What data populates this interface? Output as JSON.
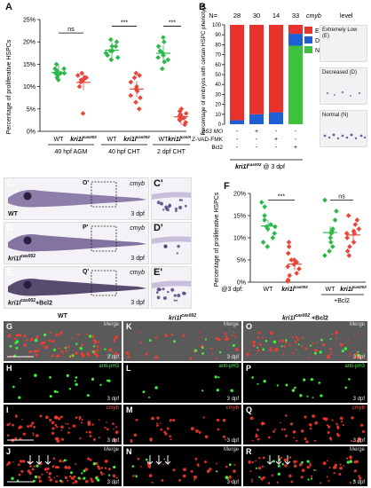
{
  "panel_labels": {
    "A": "A",
    "B": "B",
    "C": "C",
    "D": "D",
    "E": "E",
    "F": "F",
    "G": "G",
    "H": "H",
    "I": "I",
    "J": "J",
    "K": "K",
    "L": "L",
    "M": "M",
    "N": "N",
    "O": "O",
    "P": "P",
    "Q": "Q",
    "R": "R"
  },
  "panelA": {
    "ylabel": "Percentage of proliferative HSPCs",
    "yticks": [
      "0%",
      "5%",
      "10%",
      "15%",
      "20%",
      "25%"
    ],
    "sig": [
      "ns",
      "***",
      "***"
    ],
    "xlabels": [
      "WT",
      "kri1l",
      "WT",
      "kri1l",
      "WT",
      "kri1l"
    ],
    "sup": "cas002",
    "groups": [
      "40 hpf  AGM",
      "40 hpf  CHT",
      "2 dpf  CHT"
    ]
  },
  "panelB": {
    "n_labels": [
      "N=",
      "28",
      "30",
      "14",
      "33"
    ],
    "ylabel": "Percentage of embryos with certain HSPC phenotype",
    "yticks": [
      "0",
      "10",
      "20",
      "30",
      "40",
      "50",
      "60",
      "70",
      "80",
      "90",
      "100"
    ],
    "legend_title": "cmyb",
    "legend_title2": "level",
    "legend": [
      "E",
      "D",
      "N"
    ],
    "rows": [
      {
        "label": "p53 MO",
        "vals": [
          "-",
          "+",
          "-",
          "-"
        ]
      },
      {
        "label": "Z-VAD-FMK",
        "vals": [
          "-",
          "-",
          "+",
          "-"
        ]
      },
      {
        "label": "Bcl2",
        "vals": [
          "-",
          "-",
          "-",
          "+"
        ]
      }
    ],
    "bottom_label": "kri1l",
    "bottom_sup": "cas002",
    "bottom_suffix": "@ 3 dpf",
    "insets": [
      "Extremely Low (E)",
      "Decreased (D)",
      "Normal (N)"
    ]
  },
  "panelCDE": {
    "rows": [
      {
        "letter": "C",
        "prime": "C'",
        "box": "O'",
        "genotype": "WT",
        "gene": "cmyb",
        "age": "3 dpf"
      },
      {
        "letter": "D",
        "prime": "D'",
        "box": "P'",
        "genotype": "kri1l",
        "gene": "cmyb",
        "age": "3 dpf"
      },
      {
        "letter": "E",
        "prime": "E'",
        "box": "Q'",
        "genotype": "kri1l",
        "gene": "cmyb",
        "age": "3 dpf",
        "extra": "+Bcl2"
      }
    ],
    "sup": "cas002"
  },
  "panelF": {
    "ylabel": "Percentage of proliferative HSPCs",
    "yticks": [
      "0%",
      "5%",
      "10%",
      "15%",
      "20%"
    ],
    "sig": [
      "***",
      "ns"
    ],
    "prefix": "@3 dpf:",
    "xlabels": [
      "WT",
      "kri1l",
      "WT",
      "kri1l"
    ],
    "sup": "cas002",
    "group": "+Bcl2"
  },
  "panelMicro": {
    "col_titles": [
      "WT",
      "kri1l",
      "kri1l"
    ],
    "col_sup": "cas002",
    "col_extra": "+Bcl2",
    "row_tags": [
      "Merge",
      "anti-pH3",
      "cmyb",
      "Merge"
    ],
    "age": "3 dpf"
  },
  "chart_data": [
    {
      "type": "scatter",
      "title": "",
      "ylabel": "Percentage of proliferative HSPCs",
      "ylim": [
        0,
        25
      ],
      "series": [
        {
          "name": "40 hpf AGM WT",
          "color": "#2db84b",
          "values": [
            14,
            13.5,
            13,
            12.5,
            13,
            14,
            12,
            15,
            11.5,
            13
          ]
        },
        {
          "name": "40 hpf AGM kri1l",
          "color": "#e8473b",
          "values": [
            12.5,
            12,
            11.5,
            13,
            12,
            11,
            12,
            10,
            11.5,
            4
          ]
        },
        {
          "name": "40 hpf CHT WT",
          "color": "#2db84b",
          "values": [
            20,
            19,
            18,
            17.5,
            19,
            18,
            16.5,
            17,
            20.5,
            16
          ]
        },
        {
          "name": "40 hpf CHT kri1l",
          "color": "#e8473b",
          "values": [
            13,
            12,
            11,
            10,
            9.5,
            9,
            8,
            7.5,
            6.5,
            5,
            12.5
          ]
        },
        {
          "name": "2 dpf CHT WT",
          "color": "#2db84b",
          "values": [
            20,
            19,
            18,
            17,
            16,
            15.5,
            17.5,
            14,
            21,
            16.5
          ]
        },
        {
          "name": "2 dpf CHT kri1l",
          "color": "#e8473b",
          "values": [
            5,
            4,
            3.5,
            3,
            2.5,
            2,
            3,
            4.5,
            1.5,
            2.8,
            3.2,
            3.8
          ]
        }
      ]
    },
    {
      "type": "bar",
      "title": "",
      "categories": [
        "1",
        "2",
        "3",
        "4"
      ],
      "ylabel": "Percentage of embryos with certain HSPC phenotype",
      "ylim": [
        0,
        100
      ],
      "series": [
        {
          "name": "N",
          "color": "#3cc23c",
          "values": [
            0,
            0,
            0,
            79
          ]
        },
        {
          "name": "D",
          "color": "#1f5fd6",
          "values": [
            4,
            10,
            12,
            12
          ]
        },
        {
          "name": "E",
          "color": "#e8322b",
          "values": [
            96,
            90,
            88,
            9
          ]
        }
      ]
    },
    {
      "type": "scatter",
      "title": "",
      "ylabel": "Percentage of proliferative HSPCs",
      "ylim": [
        0,
        20
      ],
      "series": [
        {
          "name": "WT",
          "color": "#2db84b",
          "values": [
            18,
            17,
            15,
            14,
            13,
            12.5,
            12,
            11,
            10,
            9,
            8,
            12.5
          ]
        },
        {
          "name": "kri1l",
          "color": "#e8473b",
          "values": [
            9,
            8,
            6.5,
            5,
            4.5,
            4,
            3.5,
            3,
            2,
            1.5,
            0.5,
            0.2,
            5
          ]
        },
        {
          "name": "WT +Bcl2",
          "color": "#2db84b",
          "values": [
            18.5,
            16,
            14,
            12,
            11,
            10,
            9,
            8,
            7,
            6,
            11.5
          ]
        },
        {
          "name": "kri1l +Bcl2",
          "color": "#e8473b",
          "values": [
            15,
            14,
            13,
            12,
            11.5,
            11,
            10,
            9,
            8,
            7,
            6,
            11
          ]
        }
      ]
    }
  ]
}
